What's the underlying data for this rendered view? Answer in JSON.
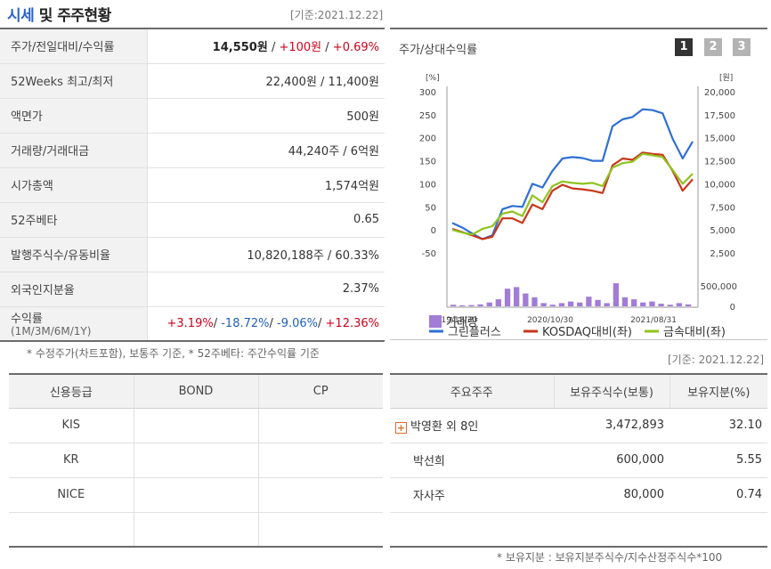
{
  "header": {
    "title_highlight": "시세",
    "title_rest": " 및 주주현황",
    "date": "[기준:2021.12.22]"
  },
  "quote": {
    "rows": [
      {
        "label": "주가/전일대비/수익률"
      },
      {
        "label": "52Weeks 최고/최저",
        "value": "22,400원 / 11,400원"
      },
      {
        "label": "액면가",
        "value": "500원"
      },
      {
        "label": "거래량/거래대금",
        "value": "44,240주 / 6억원"
      },
      {
        "label": "시가총액",
        "value": "1,574억원"
      },
      {
        "label": "52주베타",
        "value": "0.65"
      },
      {
        "label": "발행주식수/유동비율",
        "value": "10,820,188주 / 60.33%"
      },
      {
        "label": "외국인지분율",
        "value": "2.37%"
      },
      {
        "label": "수익률",
        "sublabel": "(1M/3M/6M/1Y)"
      }
    ],
    "price": "14,550원",
    "change": "+100원",
    "rate": "+0.69%",
    "returns": {
      "m1": "+3.19%",
      "m3": "-18.72%",
      "m6": "-9.06%",
      "y1": "+12.36%"
    },
    "sep": " / ",
    "sep2": "/ "
  },
  "footnote1": "* 수정주가(차트포함), 보통주 기준, * 52주베타: 주간수익률 기준",
  "credit": {
    "headers": [
      "신용등급",
      "BOND",
      "CP"
    ],
    "rows": [
      "KIS",
      "KR",
      "NICE",
      ""
    ]
  },
  "chart": {
    "title": "주가/상대수익률",
    "pages": [
      "1",
      "2",
      "3"
    ]
  },
  "chart_data": {
    "type": "line",
    "left_unit": "[%]",
    "right_unit": "[원]",
    "left_ticks": [
      "300",
      "250",
      "200",
      "150",
      "100",
      "50",
      "0",
      "-50"
    ],
    "right_ticks": [
      "20,000",
      "17,500",
      "15,000",
      "12,500",
      "10,000",
      "7,500",
      "5,000",
      "2,500"
    ],
    "volume_tick": "500,000",
    "volume_zero": "0",
    "x_labels": [
      "2019/12/30",
      "2020/10/30",
      "2021/08/31"
    ],
    "ylim_left": [
      -50,
      300
    ],
    "series": [
      {
        "name": "그린플러스",
        "color": "#2f6fd4",
        "values": [
          15,
          5,
          -8,
          -20,
          -12,
          45,
          52,
          50,
          100,
          92,
          128,
          155,
          158,
          156,
          150,
          150,
          225,
          240,
          245,
          262,
          260,
          253,
          198,
          155,
          192
        ]
      },
      {
        "name": "KOSDAQ대비(좌)",
        "color": "#c8361b",
        "values": [
          2,
          -5,
          -12,
          -20,
          -15,
          25,
          25,
          15,
          55,
          45,
          85,
          98,
          90,
          88,
          85,
          80,
          140,
          155,
          152,
          168,
          165,
          163,
          128,
          85,
          110
        ]
      },
      {
        "name": "금속대비(좌)",
        "color": "#8fc31f",
        "values": [
          0,
          -6,
          -10,
          2,
          8,
          35,
          40,
          30,
          75,
          60,
          95,
          105,
          102,
          100,
          102,
          95,
          135,
          145,
          148,
          165,
          162,
          158,
          130,
          100,
          122
        ]
      }
    ],
    "volume_name": "거래량",
    "volume_color": "#a27cd6",
    "volume": [
      0.05,
      0.03,
      0.04,
      0.06,
      0.12,
      0.22,
      0.55,
      0.6,
      0.4,
      0.28,
      0.1,
      0.05,
      0.1,
      0.15,
      0.12,
      0.3,
      0.2,
      0.1,
      0.72,
      0.28,
      0.22,
      0.12,
      0.15,
      0.08,
      0.05,
      0.1,
      0.06
    ],
    "volume_max": 1000000
  },
  "date_right": "[기준: 2021.12.22]",
  "holders": {
    "headers": [
      "주요주주",
      "보유주식수(보통)",
      "보유지분(%)"
    ],
    "rows": [
      {
        "name": "박영환 외 8인",
        "shares": "3,472,893",
        "pct": "32.10"
      },
      {
        "name": "박선희",
        "shares": "600,000",
        "pct": "5.55"
      },
      {
        "name": "자사주",
        "shares": "80,000",
        "pct": "0.74"
      },
      {
        "name": "",
        "shares": "",
        "pct": ""
      }
    ]
  },
  "footnote2": "* 보유지분 : 보유지분주식수/지수산정주식수*100"
}
